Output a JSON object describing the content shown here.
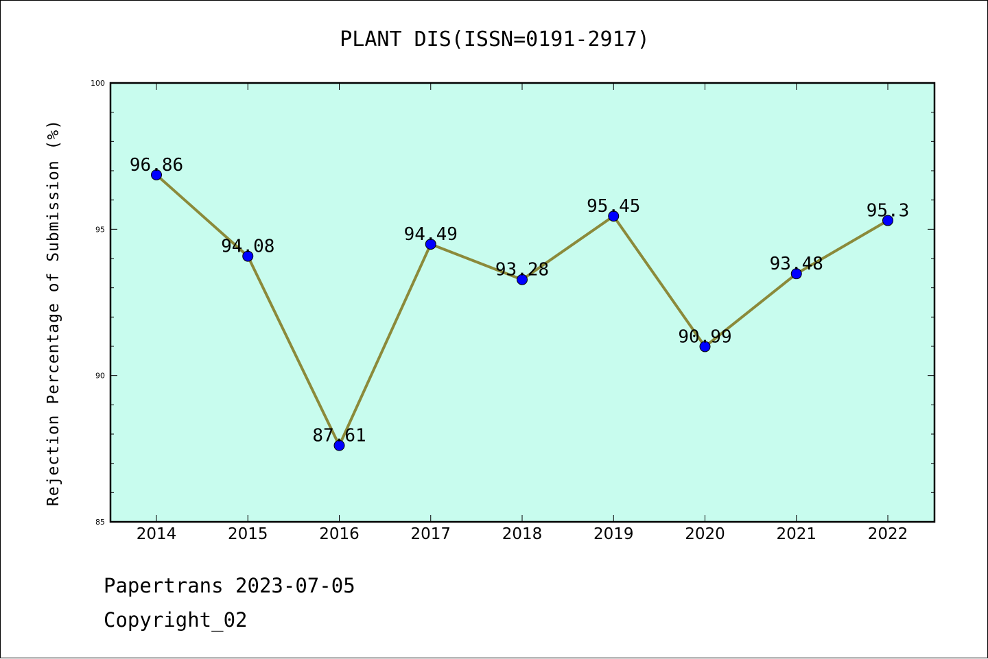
{
  "chart_data": {
    "type": "line",
    "title": "PLANT DIS(ISSN=0191-2917)",
    "xlabel": "",
    "ylabel": "Rejection Percentage of Submission (%)",
    "categories": [
      "2014",
      "2015",
      "2016",
      "2017",
      "2018",
      "2019",
      "2020",
      "2021",
      "2022"
    ],
    "values": [
      96.86,
      94.08,
      87.61,
      94.49,
      93.28,
      95.45,
      90.99,
      93.48,
      95.3
    ],
    "data_labels": [
      "96.86",
      "94.08",
      "87.61",
      "94.49",
      "93.28",
      "95.45",
      "90.99",
      "93.48",
      "95.3"
    ],
    "ylim": [
      85,
      100
    ],
    "yticks": [
      "85",
      "90",
      "95",
      "100"
    ],
    "grid": false,
    "colors": {
      "plot_background": "#c8fcee",
      "line": "#8b8a3a",
      "marker": "#0000ff"
    }
  },
  "footer": {
    "line1": "Papertrans 2023-07-05",
    "line2": "Copyright_02"
  }
}
